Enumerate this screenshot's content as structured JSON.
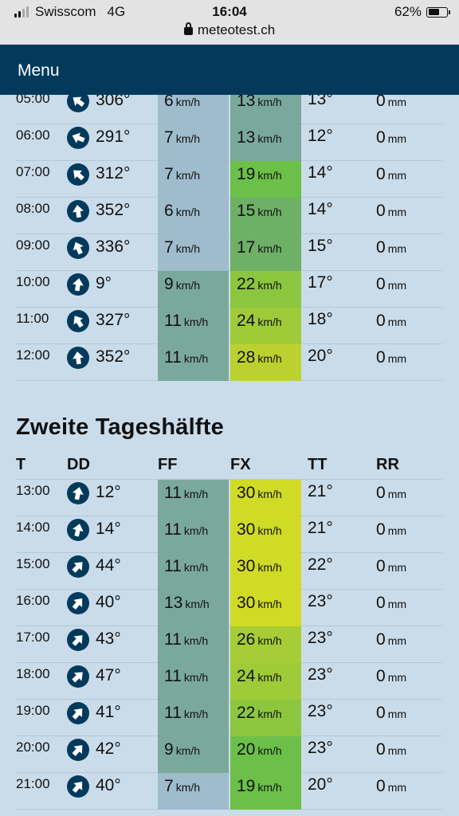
{
  "status_bar": {
    "carrier": "Swisscom",
    "network": "4G",
    "time": "16:04",
    "url": "meteotest.ch",
    "battery": "62%"
  },
  "menu": {
    "label": "Menu"
  },
  "colors": {
    "ff_low": "#9fbccd",
    "ff_mid": "#7aa99c",
    "fx_13": "#7aa99c",
    "fx_15_17": "#6fb067",
    "fx_19_20": "#6cc04a",
    "fx_22": "#8cc63f",
    "fx_24": "#9fcb38",
    "fx_26": "#a6cd35",
    "fx_28": "#bcd130",
    "fx_30": "#cfdb24"
  },
  "first_half": {
    "rows": [
      {
        "time": "05:00",
        "deg": "306°",
        "ff": "6",
        "fx": "13",
        "tt": "13°",
        "rr": "0"
      },
      {
        "time": "06:00",
        "deg": "291°",
        "ff": "7",
        "fx": "13",
        "tt": "12°",
        "rr": "0"
      },
      {
        "time": "07:00",
        "deg": "312°",
        "ff": "7",
        "fx": "19",
        "tt": "14°",
        "rr": "0"
      },
      {
        "time": "08:00",
        "deg": "352°",
        "ff": "6",
        "fx": "15",
        "tt": "14°",
        "rr": "0"
      },
      {
        "time": "09:00",
        "deg": "336°",
        "ff": "7",
        "fx": "17",
        "tt": "15°",
        "rr": "0"
      },
      {
        "time": "10:00",
        "deg": "9°",
        "ff": "9",
        "fx": "22",
        "tt": "17°",
        "rr": "0"
      },
      {
        "time": "11:00",
        "deg": "327°",
        "ff": "11",
        "fx": "24",
        "tt": "18°",
        "rr": "0"
      },
      {
        "time": "12:00",
        "deg": "352°",
        "ff": "11",
        "fx": "28",
        "tt": "20°",
        "rr": "0"
      }
    ]
  },
  "second_half": {
    "title": "Zweite Tageshälfte",
    "headers": {
      "t": "T",
      "dd": "DD",
      "ff": "FF",
      "fx": "FX",
      "tt": "TT",
      "rr": "RR"
    },
    "rows": [
      {
        "time": "13:00",
        "deg": "12°",
        "ff": "11",
        "fx": "30",
        "tt": "21°",
        "rr": "0"
      },
      {
        "time": "14:00",
        "deg": "14°",
        "ff": "11",
        "fx": "30",
        "tt": "21°",
        "rr": "0"
      },
      {
        "time": "15:00",
        "deg": "44°",
        "ff": "11",
        "fx": "30",
        "tt": "22°",
        "rr": "0"
      },
      {
        "time": "16:00",
        "deg": "40°",
        "ff": "13",
        "fx": "30",
        "tt": "23°",
        "rr": "0"
      },
      {
        "time": "17:00",
        "deg": "43°",
        "ff": "11",
        "fx": "26",
        "tt": "23°",
        "rr": "0"
      },
      {
        "time": "18:00",
        "deg": "47°",
        "ff": "11",
        "fx": "24",
        "tt": "23°",
        "rr": "0"
      },
      {
        "time": "19:00",
        "deg": "41°",
        "ff": "11",
        "fx": "22",
        "tt": "23°",
        "rr": "0"
      },
      {
        "time": "20:00",
        "deg": "42°",
        "ff": "9",
        "fx": "20",
        "tt": "23°",
        "rr": "0"
      },
      {
        "time": "21:00",
        "deg": "40°",
        "ff": "7",
        "fx": "19",
        "tt": "20°",
        "rr": "0"
      }
    ]
  },
  "units": {
    "speed": "km/h",
    "rain": "mm"
  }
}
